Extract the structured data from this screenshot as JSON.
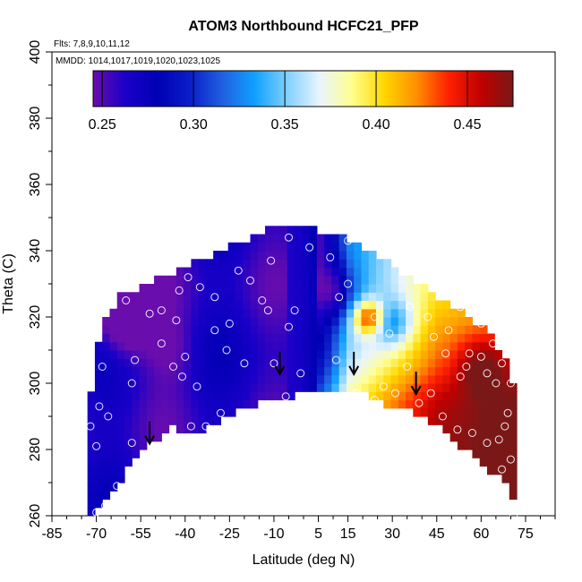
{
  "chart_data": {
    "type": "heatmap",
    "title": "ATOM3 Northbound HCFC21_PFP",
    "subtitle_flights": "Flts: 7,8,9,10,11,12",
    "subtitle_dates": "MMDD: 1014,1017,1019,1020,1023,1025",
    "xlabel": "Latitude (deg N)",
    "ylabel": "Theta (C)",
    "xlim": [
      -85,
      85
    ],
    "ylim": [
      260,
      400
    ],
    "xticks": [
      "-85",
      "-70",
      "-55",
      "-40",
      "-25",
      "-10",
      "5",
      "15",
      "30",
      "45",
      "60",
      "75"
    ],
    "xtick_values": [
      -85,
      -70,
      -55,
      -40,
      -25,
      -10,
      5,
      15,
      30,
      45,
      60,
      75
    ],
    "yticks": [
      "260",
      "280",
      "300",
      "320",
      "340",
      "360",
      "380",
      "400"
    ],
    "ytick_values": [
      260,
      280,
      300,
      320,
      340,
      360,
      380,
      400
    ],
    "colorbar": {
      "range": [
        0.245,
        0.475
      ],
      "ticks": [
        "0.25",
        "0.30",
        "0.35",
        "0.40",
        "0.45"
      ],
      "tick_values": [
        0.25,
        0.3,
        0.35,
        0.4,
        0.45
      ],
      "colors": [
        "#6a0dad",
        "#1a00c8",
        "#0000b4",
        "#0a1ec8",
        "#2060e0",
        "#10a0ff",
        "#80d0ff",
        "#e8f4ff",
        "#ffff90",
        "#ffd800",
        "#ff9000",
        "#ff2000",
        "#c00000",
        "#7a1818"
      ]
    },
    "arrows_latitude": [
      -52,
      -8,
      17,
      38
    ],
    "arrow_base_theta": [
      282,
      303,
      303,
      297
    ],
    "lower_boundary": [
      [
        -73,
        260
      ],
      [
        -68,
        266
      ],
      [
        -62,
        272
      ],
      [
        -56,
        279
      ],
      [
        -50,
        284
      ],
      [
        -45,
        288
      ],
      [
        -40,
        287
      ],
      [
        -35,
        287
      ],
      [
        -28,
        290
      ],
      [
        -20,
        294
      ],
      [
        -10,
        296
      ],
      [
        0,
        298
      ],
      [
        8,
        299
      ],
      [
        15,
        300
      ],
      [
        22,
        297
      ],
      [
        30,
        294
      ],
      [
        38,
        292
      ],
      [
        45,
        289
      ],
      [
        52,
        283
      ],
      [
        60,
        277
      ],
      [
        68,
        271
      ],
      [
        72,
        263
      ]
    ],
    "upper_boundary": [
      [
        -73,
        290
      ],
      [
        -70,
        308
      ],
      [
        -67,
        318
      ],
      [
        -62,
        325
      ],
      [
        -50,
        330
      ],
      [
        -40,
        334
      ],
      [
        -30,
        338
      ],
      [
        -20,
        342
      ],
      [
        -10,
        346
      ],
      [
        0,
        346
      ],
      [
        10,
        344
      ],
      [
        20,
        340
      ],
      [
        30,
        334
      ],
      [
        40,
        328
      ],
      [
        50,
        322
      ],
      [
        60,
        316
      ],
      [
        65,
        311
      ],
      [
        70,
        302
      ],
      [
        73,
        292
      ]
    ],
    "observations": [
      [
        -70,
        261
      ],
      [
        -67,
        263
      ],
      [
        -63,
        269
      ],
      [
        -58,
        282
      ],
      [
        -70,
        281
      ],
      [
        -72,
        287
      ],
      [
        -69,
        293
      ],
      [
        -66,
        290
      ],
      [
        -58,
        300
      ],
      [
        -57,
        307
      ],
      [
        -60,
        325
      ],
      [
        -52,
        321
      ],
      [
        -48,
        322
      ],
      [
        -43,
        319
      ],
      [
        -40,
        308
      ],
      [
        -44,
        305
      ],
      [
        -48,
        312
      ],
      [
        -41,
        302
      ],
      [
        -38,
        287
      ],
      [
        -33,
        287
      ],
      [
        -28,
        291
      ],
      [
        -36,
        299
      ],
      [
        -30,
        316
      ],
      [
        -30,
        326
      ],
      [
        -35,
        329
      ],
      [
        -39,
        332
      ],
      [
        -42,
        328
      ],
      [
        -22,
        334
      ],
      [
        -18,
        331
      ],
      [
        -12,
        322
      ],
      [
        -5,
        317
      ],
      [
        -3,
        322
      ],
      [
        -10,
        306
      ],
      [
        -6,
        296
      ],
      [
        -20,
        306
      ],
      [
        -14,
        325
      ],
      [
        -11,
        337
      ],
      [
        -5,
        344
      ],
      [
        2,
        341
      ],
      [
        -1,
        303
      ],
      [
        -26,
        310
      ],
      [
        -25,
        318
      ],
      [
        9,
        338
      ],
      [
        15,
        330
      ],
      [
        12,
        326
      ],
      [
        11,
        307
      ],
      [
        18,
        297
      ],
      [
        24,
        295
      ],
      [
        27,
        299
      ],
      [
        31,
        297
      ],
      [
        39,
        294
      ],
      [
        43,
        297
      ],
      [
        47,
        290
      ],
      [
        52,
        286
      ],
      [
        57,
        285
      ],
      [
        62,
        282
      ],
      [
        66,
        283
      ],
      [
        69,
        291
      ],
      [
        70,
        300
      ],
      [
        67,
        306
      ],
      [
        64,
        312
      ],
      [
        60,
        318
      ],
      [
        57,
        322
      ],
      [
        53,
        323
      ],
      [
        56,
        309
      ],
      [
        60,
        308
      ],
      [
        62,
        303
      ],
      [
        65,
        300
      ],
      [
        53,
        302
      ],
      [
        48,
        309
      ],
      [
        44,
        314
      ],
      [
        49,
        316
      ],
      [
        55,
        305
      ],
      [
        42,
        320
      ],
      [
        36,
        323
      ],
      [
        68,
        287
      ],
      [
        70,
        277
      ],
      [
        67,
        274
      ],
      [
        71,
        260
      ],
      [
        24,
        320
      ],
      [
        29,
        315
      ],
      [
        35,
        305
      ],
      [
        15,
        343
      ],
      [
        21,
        342
      ],
      [
        -68,
        305
      ]
    ]
  }
}
